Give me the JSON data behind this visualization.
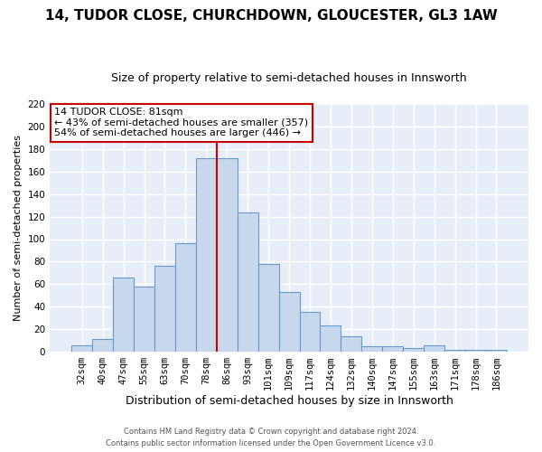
{
  "title": "14, TUDOR CLOSE, CHURCHDOWN, GLOUCESTER, GL3 1AW",
  "subtitle": "Size of property relative to semi-detached houses in Innsworth",
  "xlabel": "Distribution of semi-detached houses by size in Innsworth",
  "ylabel": "Number of semi-detached properties",
  "categories": [
    "32sqm",
    "40sqm",
    "47sqm",
    "55sqm",
    "63sqm",
    "70sqm",
    "78sqm",
    "86sqm",
    "93sqm",
    "101sqm",
    "109sqm",
    "117sqm",
    "124sqm",
    "132sqm",
    "140sqm",
    "147sqm",
    "155sqm",
    "163sqm",
    "171sqm",
    "178sqm",
    "186sqm"
  ],
  "values": [
    6,
    11,
    66,
    58,
    76,
    96,
    172,
    172,
    124,
    78,
    53,
    35,
    23,
    14,
    5,
    5,
    3,
    6,
    2,
    2,
    2
  ],
  "bar_color": "#c8d8ec",
  "bar_edge_color": "#6699cc",
  "vline_x_index": 6,
  "vline_color": "#cc0000",
  "annotation_title": "14 TUDOR CLOSE: 81sqm",
  "annotation_line1": "← 43% of semi-detached houses are smaller (357)",
  "annotation_line2": "54% of semi-detached houses are larger (446) →",
  "annotation_box_facecolor": "#ffffff",
  "annotation_box_edgecolor": "#cc0000",
  "ylim": [
    0,
    220
  ],
  "yticks": [
    0,
    20,
    40,
    60,
    80,
    100,
    120,
    140,
    160,
    180,
    200,
    220
  ],
  "footer1": "Contains HM Land Registry data © Crown copyright and database right 2024.",
  "footer2": "Contains public sector information licensed under the Open Government Licence v3.0.",
  "bg_color": "#ffffff",
  "plot_bg_color": "#e8eef8",
  "grid_color": "#ffffff",
  "title_fontsize": 11,
  "subtitle_fontsize": 9,
  "ylabel_fontsize": 8,
  "xlabel_fontsize": 9,
  "tick_fontsize": 7.5,
  "footer_fontsize": 6
}
